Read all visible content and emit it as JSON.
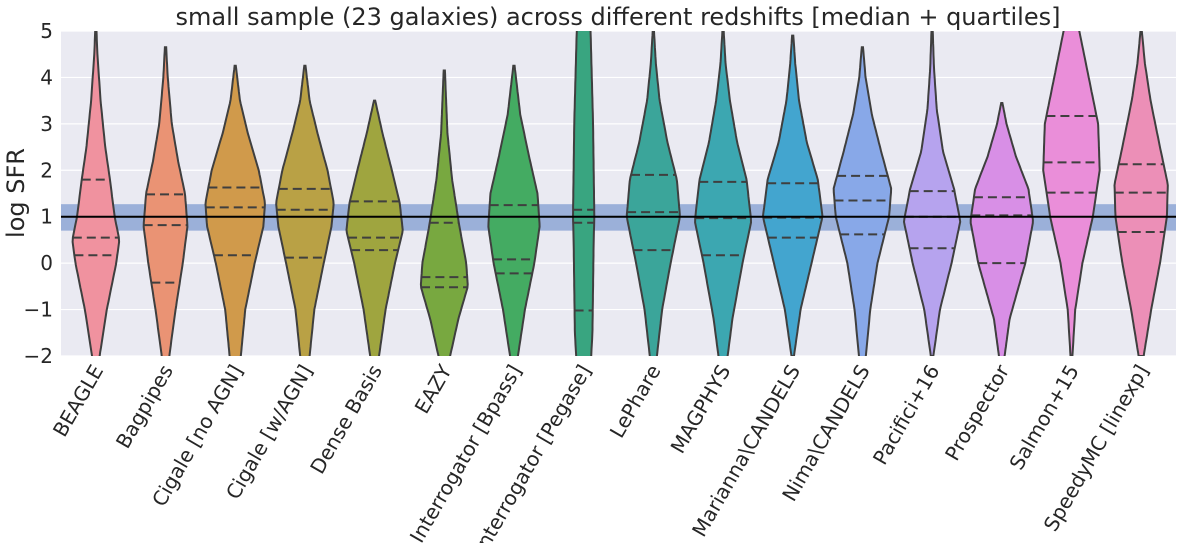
{
  "chart_data": {
    "type": "violin",
    "title": "small sample (23 galaxies) across different redshifts [median + quartiles]",
    "xlabel": "",
    "ylabel": "log SFR",
    "ylim": [
      -2,
      5
    ],
    "yticks": [
      -2,
      -1,
      0,
      1,
      2,
      3,
      4,
      5
    ],
    "ytick_labels": [
      "−2",
      "−1",
      "0",
      "1",
      "2",
      "3",
      "4",
      "5"
    ],
    "grid": true,
    "reference_line": {
      "value": 1.0,
      "color": "#000000"
    },
    "reference_band": {
      "low": 0.7,
      "high": 1.27,
      "color": "#5a7fc4",
      "opacity": 0.55
    },
    "series": [
      {
        "name": "BEAGLE",
        "color": "#f0929f",
        "min": -2.9,
        "max": 5.0,
        "q1": 0.17,
        "median": 0.55,
        "q3": 1.8,
        "density": [
          [
            -2.9,
            0.02
          ],
          [
            -2.0,
            0.12
          ],
          [
            -1.0,
            0.35
          ],
          [
            0.0,
            0.65
          ],
          [
            0.5,
            0.75
          ],
          [
            1.0,
            0.6
          ],
          [
            1.8,
            0.45
          ],
          [
            2.5,
            0.3
          ],
          [
            3.5,
            0.15
          ],
          [
            4.5,
            0.05
          ],
          [
            5.0,
            0.02
          ]
        ]
      },
      {
        "name": "Bagpipes",
        "color": "#ea9374",
        "min": -2.9,
        "max": 4.65,
        "q1": -0.42,
        "median": 0.82,
        "q3": 1.48,
        "density": [
          [
            -2.9,
            0.03
          ],
          [
            -2.0,
            0.12
          ],
          [
            -1.0,
            0.32
          ],
          [
            0.0,
            0.55
          ],
          [
            0.8,
            0.7
          ],
          [
            1.5,
            0.62
          ],
          [
            2.2,
            0.4
          ],
          [
            3.0,
            0.2
          ],
          [
            4.0,
            0.07
          ],
          [
            4.65,
            0.02
          ]
        ]
      },
      {
        "name": "Cigale [no AGN]",
        "color": "#d09a4b",
        "min": -2.2,
        "max": 4.25,
        "q1": 0.17,
        "median": 1.2,
        "q3": 1.63,
        "density": [
          [
            -2.2,
            0.15
          ],
          [
            -1.0,
            0.32
          ],
          [
            0.0,
            0.62
          ],
          [
            0.8,
            0.9
          ],
          [
            1.3,
            0.95
          ],
          [
            2.0,
            0.75
          ],
          [
            2.8,
            0.4
          ],
          [
            3.5,
            0.15
          ],
          [
            4.25,
            0.02
          ]
        ]
      },
      {
        "name": "Cigale [w/AGN]",
        "color": "#b9a145",
        "min": -2.2,
        "max": 4.25,
        "q1": 0.12,
        "median": 1.15,
        "q3": 1.6,
        "density": [
          [
            -2.2,
            0.12
          ],
          [
            -1.0,
            0.3
          ],
          [
            0.0,
            0.6
          ],
          [
            0.8,
            0.85
          ],
          [
            1.3,
            0.92
          ],
          [
            2.0,
            0.72
          ],
          [
            2.8,
            0.4
          ],
          [
            3.5,
            0.15
          ],
          [
            4.25,
            0.02
          ]
        ]
      },
      {
        "name": "Dense Basis",
        "color": "#9fa53f",
        "min": -2.2,
        "max": 3.5,
        "q1": 0.28,
        "median": 0.55,
        "q3": 1.33,
        "density": [
          [
            -2.2,
            0.1
          ],
          [
            -1.0,
            0.35
          ],
          [
            0.0,
            0.65
          ],
          [
            0.7,
            0.9
          ],
          [
            1.3,
            0.8
          ],
          [
            2.0,
            0.55
          ],
          [
            2.8,
            0.25
          ],
          [
            3.5,
            0.02
          ]
        ]
      },
      {
        "name": "EAZY",
        "color": "#78a840",
        "min": -2.2,
        "max": 4.15,
        "q1": -0.52,
        "median": -0.3,
        "q3": 0.87,
        "density": [
          [
            -2.2,
            0.12
          ],
          [
            -1.2,
            0.45
          ],
          [
            -0.5,
            0.75
          ],
          [
            0.0,
            0.7
          ],
          [
            0.8,
            0.48
          ],
          [
            1.8,
            0.25
          ],
          [
            2.8,
            0.1
          ],
          [
            4.15,
            0.02
          ]
        ]
      },
      {
        "name": "Interrogator [Bpass]",
        "color": "#44ab62",
        "min": -2.2,
        "max": 4.25,
        "q1": -0.22,
        "median": 0.08,
        "q3": 1.25,
        "density": [
          [
            -2.2,
            0.08
          ],
          [
            -1.0,
            0.35
          ],
          [
            0.0,
            0.65
          ],
          [
            0.8,
            0.82
          ],
          [
            1.5,
            0.75
          ],
          [
            2.3,
            0.48
          ],
          [
            3.2,
            0.2
          ],
          [
            4.25,
            0.02
          ]
        ]
      },
      {
        "name": "Interrogator [Pegase]",
        "color": "#39a580",
        "min": -2.5,
        "max": 6.0,
        "q1": -1.02,
        "median": 0.87,
        "q3": 1.15,
        "density": [
          [
            -2.5,
            0.2
          ],
          [
            -1.5,
            0.28
          ],
          [
            -0.5,
            0.3
          ],
          [
            0.5,
            0.32
          ],
          [
            1.0,
            0.34
          ],
          [
            2.0,
            0.32
          ],
          [
            3.0,
            0.3
          ],
          [
            4.0,
            0.26
          ],
          [
            5.0,
            0.22
          ],
          [
            6.0,
            0.15
          ]
        ]
      },
      {
        "name": "LePhare",
        "color": "#3ba59a",
        "min": -2.2,
        "max": 5.0,
        "q1": 0.28,
        "median": 1.1,
        "q3": 1.9,
        "density": [
          [
            -2.2,
            0.08
          ],
          [
            -1.0,
            0.28
          ],
          [
            0.0,
            0.55
          ],
          [
            1.0,
            0.85
          ],
          [
            1.8,
            0.75
          ],
          [
            2.6,
            0.45
          ],
          [
            3.5,
            0.2
          ],
          [
            4.3,
            0.08
          ],
          [
            5.0,
            0.02
          ]
        ]
      },
      {
        "name": "MAGPHYS",
        "color": "#3ca7b1",
        "min": -2.5,
        "max": 5.0,
        "q1": 0.17,
        "median": 0.97,
        "q3": 1.75,
        "density": [
          [
            -2.5,
            0.05
          ],
          [
            -1.2,
            0.3
          ],
          [
            0.0,
            0.62
          ],
          [
            0.9,
            0.9
          ],
          [
            1.8,
            0.75
          ],
          [
            2.6,
            0.45
          ],
          [
            3.5,
            0.22
          ],
          [
            4.3,
            0.08
          ],
          [
            5.0,
            0.02
          ]
        ]
      },
      {
        "name": "Marianna\\CANDELS",
        "color": "#43a5cf",
        "min": -2.0,
        "max": 4.9,
        "q1": 0.55,
        "median": 0.98,
        "q3": 1.72,
        "density": [
          [
            -2.0,
            0.04
          ],
          [
            -1.0,
            0.25
          ],
          [
            0.0,
            0.6
          ],
          [
            1.0,
            0.95
          ],
          [
            1.8,
            0.8
          ],
          [
            2.6,
            0.45
          ],
          [
            3.5,
            0.2
          ],
          [
            4.3,
            0.08
          ],
          [
            4.9,
            0.02
          ]
        ]
      },
      {
        "name": "Nima\\CANDELS",
        "color": "#88a8e8",
        "min": -2.5,
        "max": 4.65,
        "q1": 0.62,
        "median": 1.35,
        "q3": 1.88,
        "density": [
          [
            -2.5,
            0.04
          ],
          [
            -1.0,
            0.25
          ],
          [
            0.0,
            0.48
          ],
          [
            1.0,
            0.85
          ],
          [
            1.6,
            0.92
          ],
          [
            2.4,
            0.6
          ],
          [
            3.2,
            0.3
          ],
          [
            4.0,
            0.1
          ],
          [
            4.65,
            0.02
          ]
        ]
      },
      {
        "name": "Pacifici+16",
        "color": "#b6a3ee",
        "min": -2.0,
        "max": 5.0,
        "q1": 0.32,
        "median": 1.0,
        "q3": 1.55,
        "density": [
          [
            -2.0,
            0.04
          ],
          [
            -1.0,
            0.25
          ],
          [
            0.0,
            0.62
          ],
          [
            0.9,
            0.9
          ],
          [
            1.6,
            0.7
          ],
          [
            2.4,
            0.35
          ],
          [
            3.3,
            0.15
          ],
          [
            4.2,
            0.06
          ],
          [
            5.0,
            0.02
          ]
        ]
      },
      {
        "name": "Prospector",
        "color": "#d88fe6",
        "min": -2.3,
        "max": 3.45,
        "q1": 0.0,
        "median": 1.03,
        "q3": 1.42,
        "density": [
          [
            -2.3,
            0.03
          ],
          [
            -1.2,
            0.25
          ],
          [
            0.0,
            0.75
          ],
          [
            0.9,
            1.0
          ],
          [
            1.6,
            0.85
          ],
          [
            2.3,
            0.45
          ],
          [
            3.0,
            0.15
          ],
          [
            3.45,
            0.02
          ]
        ]
      },
      {
        "name": "Salmon+15",
        "color": "#ea8ed9",
        "min": -2.0,
        "max": 6.0,
        "q1": 1.52,
        "median": 2.17,
        "q3": 3.17,
        "density": [
          [
            -2.0,
            0.03
          ],
          [
            -1.0,
            0.12
          ],
          [
            0.0,
            0.35
          ],
          [
            1.0,
            0.68
          ],
          [
            2.0,
            0.9
          ],
          [
            3.0,
            0.85
          ],
          [
            4.0,
            0.55
          ],
          [
            5.0,
            0.25
          ],
          [
            6.0,
            0.05
          ]
        ]
      },
      {
        "name": "SpeedyMC [linexp]",
        "color": "#ec8fb7",
        "min": -2.0,
        "max": 5.0,
        "q1": 0.67,
        "median": 1.52,
        "q3": 2.13,
        "density": [
          [
            -2.0,
            0.08
          ],
          [
            -1.0,
            0.32
          ],
          [
            0.0,
            0.6
          ],
          [
            1.0,
            0.82
          ],
          [
            1.7,
            0.85
          ],
          [
            2.5,
            0.6
          ],
          [
            3.5,
            0.3
          ],
          [
            4.3,
            0.12
          ],
          [
            5.0,
            0.02
          ]
        ]
      }
    ]
  }
}
